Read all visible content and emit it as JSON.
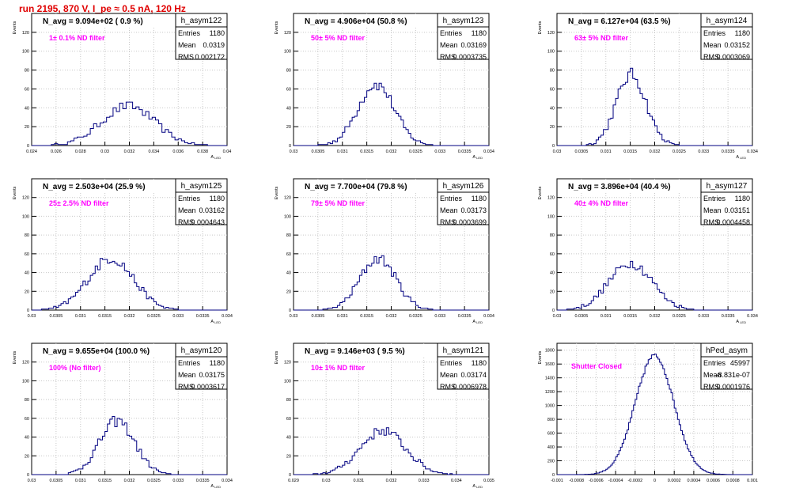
{
  "title": "run 2195,   870 V, I_pe ≈ 0.5 nA, 120 Hz",
  "colors": {
    "histogram": "#000080",
    "grid": "#c8c8c8",
    "annotation": "#ff00ff",
    "title": "#e00000"
  },
  "chart_data": [
    {
      "type": "histogram",
      "name": "h_asym122",
      "navg": "N_avg = 9.094e+02 ( 0.9 %)",
      "annotation": "1± 0.1% ND filter",
      "stats": {
        "entries": "1180",
        "mean": "0.0319",
        "rms": "0.002172"
      },
      "xlim": [
        0.024,
        0.04
      ],
      "xticks": [
        "0.024",
        "0.026",
        "0.028",
        "0.03",
        "0.032",
        "0.034",
        "0.036",
        "0.038",
        "0.04"
      ],
      "ylim": [
        0,
        140
      ],
      "yticks": [
        "0",
        "20",
        "40",
        "60",
        "80",
        "100",
        "120"
      ],
      "ylabel": "Events",
      "xlabel": "A_{LED}",
      "mean": 0.0319,
      "rms": 0.002172,
      "peak": 42,
      "bins": 60
    },
    {
      "type": "histogram",
      "name": "h_asym123",
      "navg": "N_avg = 4.906e+04 (50.8 %)",
      "annotation": "50± 5% ND filter",
      "stats": {
        "entries": "1180",
        "mean": "0.03169",
        "rms": "0.0003735"
      },
      "xlim": [
        0.03,
        0.034
      ],
      "xticks": [
        "0.03",
        "0.0305",
        "0.031",
        "0.0315",
        "0.032",
        "0.0325",
        "0.033",
        "0.0335",
        "0.034"
      ],
      "ylim": [
        0,
        140
      ],
      "yticks": [
        "0",
        "20",
        "40",
        "60",
        "80",
        "100",
        "120"
      ],
      "ylabel": "Events",
      "xlabel": "A_{LED}",
      "mean": 0.03169,
      "rms": 0.0003735,
      "peak": 65,
      "bins": 80
    },
    {
      "type": "histogram",
      "name": "h_asym124",
      "navg": "N_avg = 6.127e+04 (63.5 %)",
      "annotation": "63± 5% ND filter",
      "stats": {
        "entries": "1180",
        "mean": "0.03152",
        "rms": "0.0003069"
      },
      "xlim": [
        0.03,
        0.034
      ],
      "xticks": [
        "0.03",
        "0.0305",
        "0.031",
        "0.0315",
        "0.032",
        "0.0325",
        "0.033",
        "0.0335",
        "0.034"
      ],
      "ylim": [
        0,
        140
      ],
      "yticks": [
        "0",
        "20",
        "40",
        "60",
        "80",
        "100",
        "120"
      ],
      "ylabel": "Events",
      "xlabel": "A_{LED}",
      "mean": 0.03152,
      "rms": 0.0003069,
      "peak": 75,
      "bins": 80
    },
    {
      "type": "histogram",
      "name": "h_asym125",
      "navg": "N_avg = 2.503e+04 (25.9 %)",
      "annotation": "25± 2.5% ND filter",
      "stats": {
        "entries": "1180",
        "mean": "0.03162",
        "rms": "0.0004643"
      },
      "xlim": [
        0.03,
        0.034
      ],
      "xticks": [
        "0.03",
        "0.0305",
        "0.031",
        "0.0315",
        "0.032",
        "0.0325",
        "0.033",
        "0.0335",
        "0.034"
      ],
      "ylim": [
        0,
        140
      ],
      "yticks": [
        "0",
        "20",
        "40",
        "60",
        "80",
        "100",
        "120"
      ],
      "ylabel": "Events",
      "xlabel": "A_{LED}",
      "mean": 0.03162,
      "rms": 0.0004643,
      "peak": 55,
      "bins": 80
    },
    {
      "type": "histogram",
      "name": "h_asym126",
      "navg": "N_avg = 7.700e+04 (79.8 %)",
      "annotation": "79± 5% ND filter",
      "stats": {
        "entries": "1180",
        "mean": "0.03173",
        "rms": "0.0003699"
      },
      "xlim": [
        0.03,
        0.034
      ],
      "xticks": [
        "0.03",
        "0.0305",
        "0.031",
        "0.0315",
        "0.032",
        "0.0325",
        "0.033",
        "0.0335",
        "0.034"
      ],
      "ylim": [
        0,
        140
      ],
      "yticks": [
        "0",
        "20",
        "40",
        "60",
        "80",
        "100",
        "120"
      ],
      "ylabel": "Events",
      "xlabel": "A_{LED}",
      "mean": 0.03173,
      "rms": 0.0003699,
      "peak": 55,
      "bins": 80
    },
    {
      "type": "histogram",
      "name": "h_asym127",
      "navg": "N_avg = 3.896e+04 (40.4 %)",
      "annotation": "40± 4% ND filter",
      "stats": {
        "entries": "1180",
        "mean": "0.03151",
        "rms": "0.0004458"
      },
      "xlim": [
        0.03,
        0.034
      ],
      "xticks": [
        "0.03",
        "0.0305",
        "0.031",
        "0.0315",
        "0.032",
        "0.0325",
        "0.033",
        "0.0335",
        "0.034"
      ],
      "ylim": [
        0,
        140
      ],
      "yticks": [
        "0",
        "20",
        "40",
        "60",
        "80",
        "100",
        "120"
      ],
      "ylabel": "Events",
      "xlabel": "A_{LED}",
      "mean": 0.03151,
      "rms": 0.0004458,
      "peak": 50,
      "bins": 80
    },
    {
      "type": "histogram",
      "name": "h_asym120",
      "navg": "N_avg = 9.655e+04 (100.0 %)",
      "annotation": "100% (No filter)",
      "stats": {
        "entries": "1180",
        "mean": "0.03175",
        "rms": "0.0003617"
      },
      "xlim": [
        0.03,
        0.034
      ],
      "xticks": [
        "0.03",
        "0.0305",
        "0.031",
        "0.0315",
        "0.032",
        "0.0325",
        "0.033",
        "0.0335",
        "0.034"
      ],
      "ylim": [
        0,
        140
      ],
      "yticks": [
        "0",
        "20",
        "40",
        "60",
        "80",
        "100",
        "120"
      ],
      "ylabel": "Events",
      "xlabel": "A_{LED}",
      "mean": 0.03175,
      "rms": 0.0003617,
      "peak": 57,
      "bins": 80
    },
    {
      "type": "histogram",
      "name": "h_asym121",
      "navg": "N_avg = 9.146e+03 ( 9.5 %)",
      "annotation": "10± 1% ND filter",
      "stats": {
        "entries": "1180",
        "mean": "0.03174",
        "rms": "0.0006978"
      },
      "xlim": [
        0.029,
        0.035
      ],
      "xticks": [
        "0.029",
        "0.03",
        "0.031",
        "0.032",
        "0.033",
        "0.034",
        "0.035"
      ],
      "ylim": [
        0,
        140
      ],
      "yticks": [
        "0",
        "20",
        "40",
        "60",
        "80",
        "100",
        "120"
      ],
      "ylabel": "Events",
      "xlabel": "A_{LED}",
      "mean": 0.03174,
      "rms": 0.0006978,
      "peak": 47,
      "bins": 80
    },
    {
      "type": "histogram",
      "name": "hPed_asym",
      "navg": "",
      "annotation": "Shutter Closed",
      "stats": {
        "entries": "45997",
        "mean": "-8.831e-07",
        "rms": "0.0001976"
      },
      "xlim": [
        -0.001,
        0.001
      ],
      "xticks": [
        "-0.001",
        "-0.0008",
        "-0.0006",
        "-0.0004",
        "-0.0002",
        "0",
        "0.0002",
        "0.0004",
        "0.0006",
        "0.0008",
        "0.001"
      ],
      "ylim": [
        0,
        1900
      ],
      "yticks": [
        "0",
        "200",
        "400",
        "600",
        "800",
        "1000",
        "1200",
        "1400",
        "1600",
        "1800"
      ],
      "ylabel": "Events",
      "xlabel": "",
      "mean": -8.831e-07,
      "rms": 0.0001976,
      "peak": 1720,
      "bins": 120
    }
  ]
}
